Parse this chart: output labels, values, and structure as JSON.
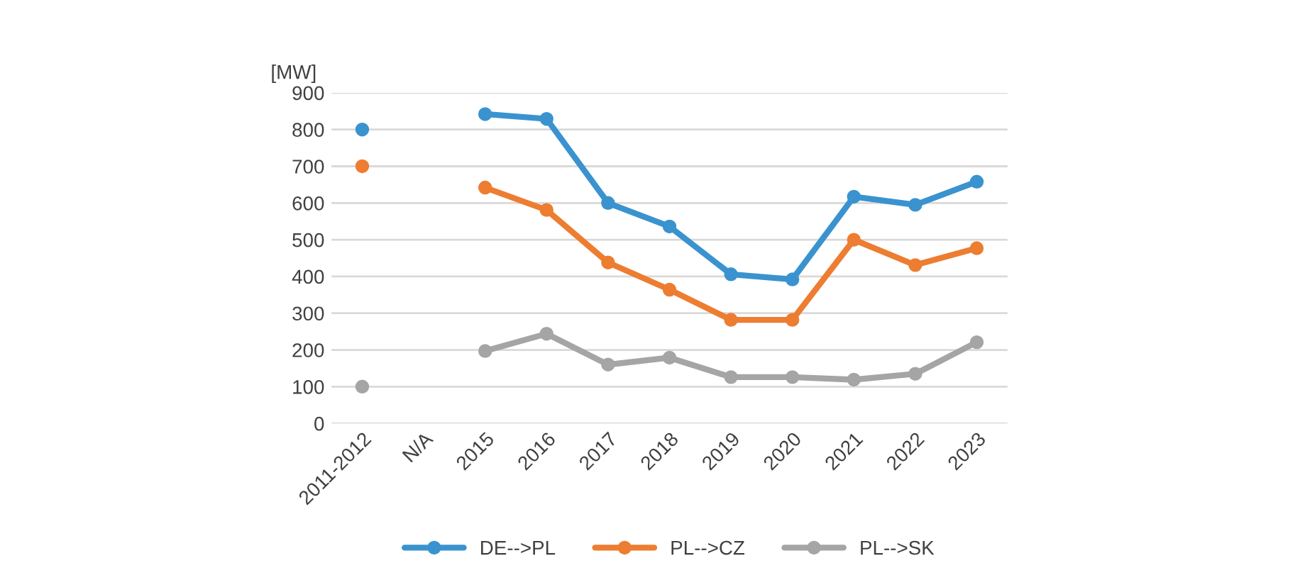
{
  "chart_data": {
    "type": "line",
    "ylabel": "[MW]",
    "categories": [
      "2011-2012",
      "N/A",
      "2015",
      "2016",
      "2017",
      "2018",
      "2019",
      "2020",
      "2021",
      "2022",
      "2023"
    ],
    "series": [
      {
        "name": "DE-->PL",
        "color": "#3a93cf",
        "values": [
          800,
          null,
          842,
          829,
          600,
          536,
          406,
          392,
          617,
          595,
          658
        ]
      },
      {
        "name": "PL-->CZ",
        "color": "#ed7d31",
        "values": [
          700,
          null,
          642,
          581,
          438,
          364,
          282,
          282,
          500,
          431,
          477
        ]
      },
      {
        "name": "PL-->SK",
        "color": "#a5a5a5",
        "values": [
          100,
          null,
          197,
          244,
          160,
          179,
          126,
          126,
          119,
          135,
          221
        ]
      }
    ],
    "ylim": [
      0,
      900
    ],
    "yticks": [
      0,
      100,
      200,
      300,
      400,
      500,
      600,
      700,
      800,
      900
    ],
    "grid": "y",
    "legend": "bottom",
    "marker": "circle",
    "line_style": "solid"
  }
}
